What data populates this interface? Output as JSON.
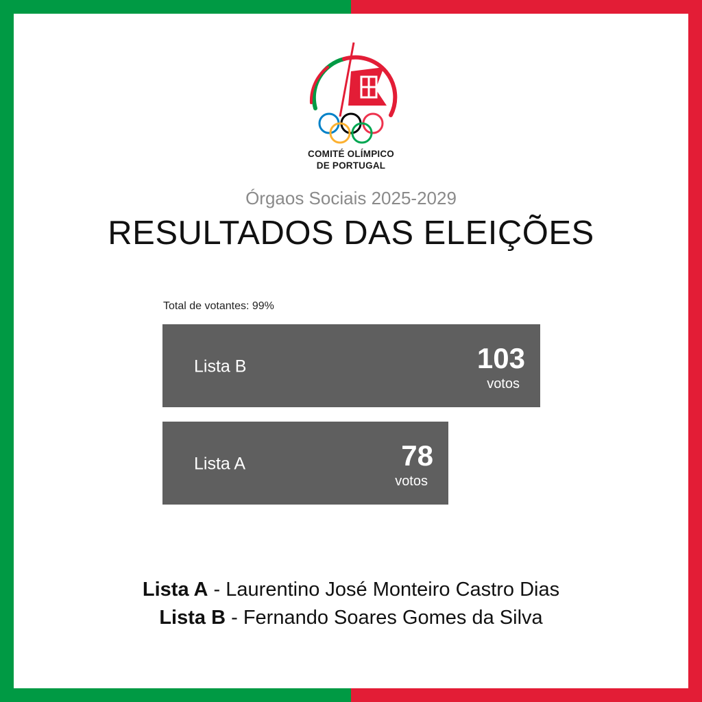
{
  "colors": {
    "green": "#009a44",
    "red": "#e31d36",
    "bar": "#5f5f5f",
    "white": "#ffffff"
  },
  "logo": {
    "line1": "COMITÉ OLÍMPICO",
    "line2": "DE PORTUGAL",
    "icon": "olympic-rings-logo-icon"
  },
  "subtitle": "Órgaos Sociais 2025-2029",
  "title": "RESULTADOS DAS ELEIÇÕES",
  "turnout": "Total de votantes: 99%",
  "chart_data": {
    "type": "bar",
    "orientation": "horizontal",
    "categories": [
      "Lista B",
      "Lista A"
    ],
    "values": [
      103,
      78
    ],
    "unit": "votos",
    "xlim": [
      0,
      103
    ]
  },
  "candidates": [
    {
      "list": "Lista A",
      "separator": " - ",
      "name": "Laurentino José Monteiro Castro Dias"
    },
    {
      "list": "Lista B",
      "separator": " - ",
      "name": "Fernando Soares Gomes da Silva"
    }
  ]
}
